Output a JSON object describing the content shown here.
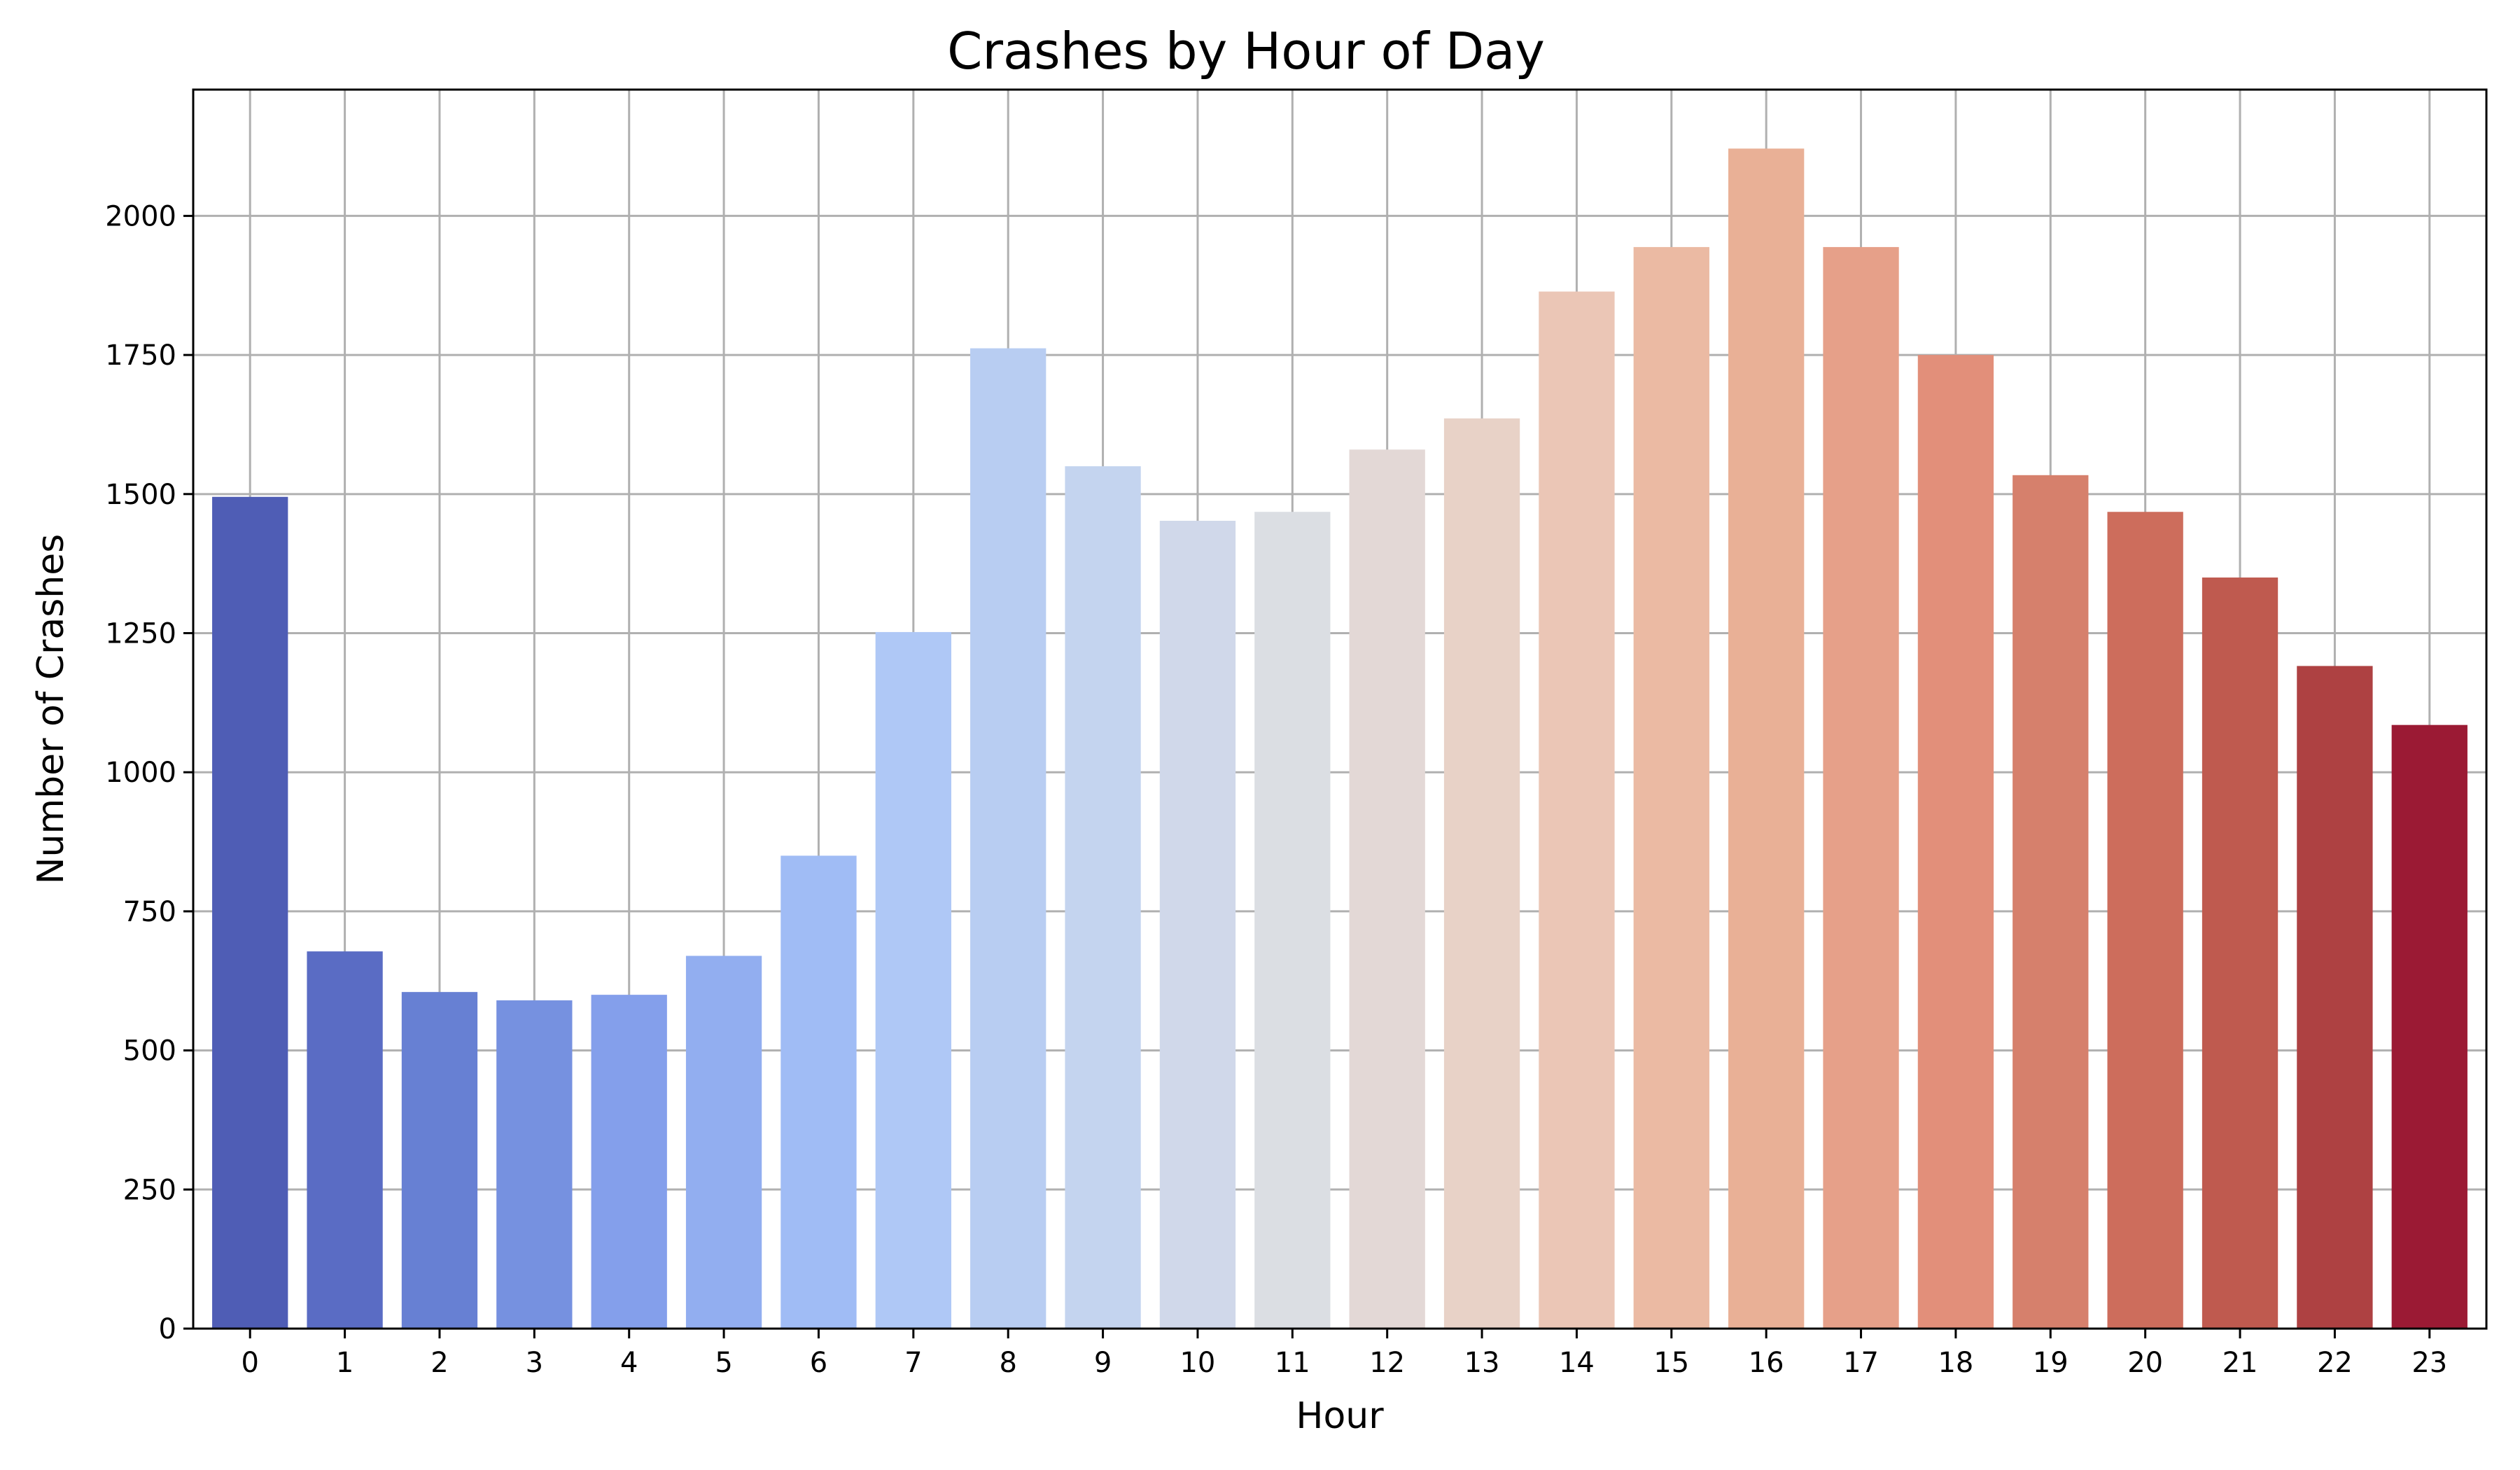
{
  "chart_data": {
    "type": "bar",
    "title": "Crashes by Hour of Day",
    "xlabel": "Hour",
    "ylabel": "Number of Crashes",
    "categories": [
      "0",
      "1",
      "2",
      "3",
      "4",
      "5",
      "6",
      "7",
      "8",
      "9",
      "10",
      "11",
      "12",
      "13",
      "14",
      "15",
      "16",
      "17",
      "18",
      "19",
      "20",
      "21",
      "22",
      "23"
    ],
    "values": [
      1495,
      678,
      605,
      590,
      600,
      670,
      850,
      1252,
      1762,
      1550,
      1452,
      1468,
      1580,
      1636,
      1864,
      1944,
      2121,
      1944,
      1750,
      1534,
      1468,
      1350,
      1191,
      1085
    ],
    "yticks": [
      0,
      250,
      500,
      750,
      1000,
      1250,
      1500,
      1750,
      2000
    ],
    "ylim": [
      0,
      2227
    ],
    "grid": true,
    "legend": "none",
    "colors": [
      "#4f5db5",
      "#5a6cc4",
      "#6780d3",
      "#7691e0",
      "#849feb",
      "#92aef0",
      "#a0bcf5",
      "#afc8f6",
      "#b8cdf2",
      "#c4d4ef",
      "#d0d8ea",
      "#dbdee3",
      "#e3d8d6",
      "#e8d2c7",
      "#ebc6b6",
      "#ebbaa3",
      "#e9b096",
      "#e6a089",
      "#e28f7a",
      "#d6806c",
      "#cd6d5c",
      "#bf5a4f",
      "#ae4142",
      "#9b1a34"
    ]
  }
}
